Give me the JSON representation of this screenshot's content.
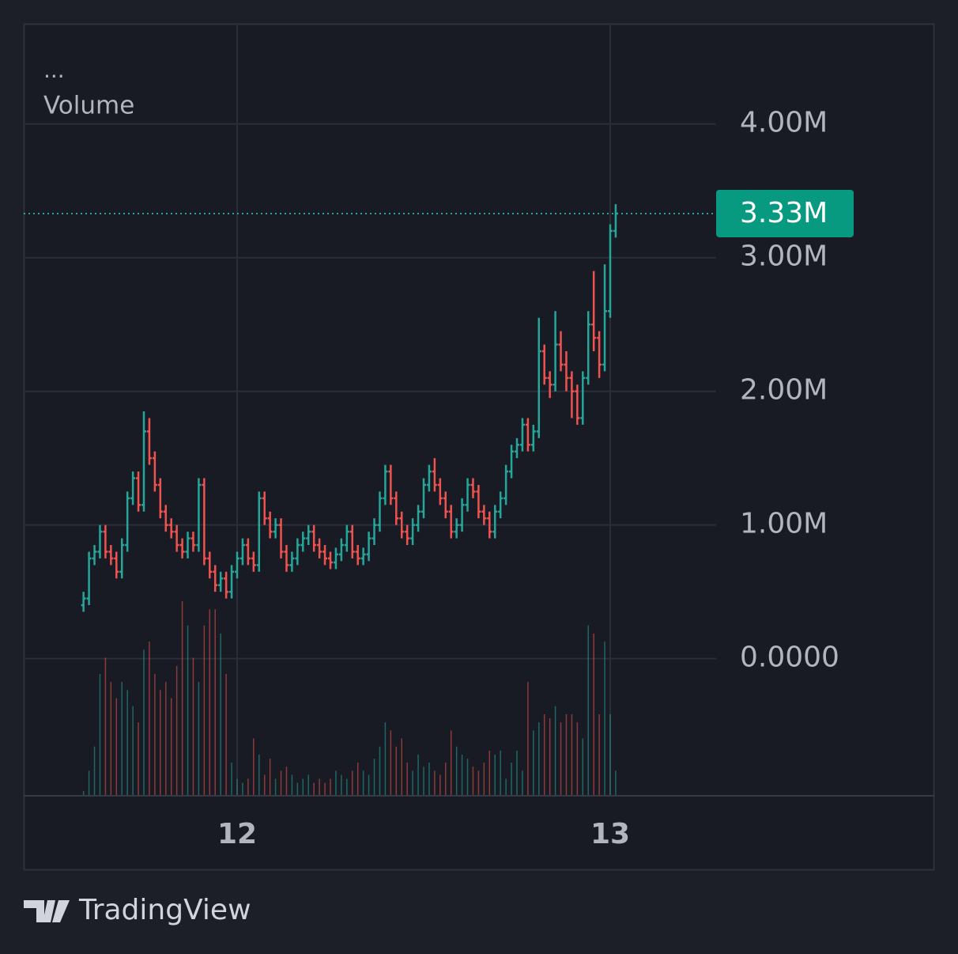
{
  "chart_data": {
    "type": "ohlc",
    "indicator_menu": "...",
    "indicator_label": "Volume",
    "brand": "TradingView",
    "categories": [
      null,
      null,
      null,
      null,
      null,
      null,
      null,
      null,
      null,
      null,
      null,
      null,
      null,
      null,
      null,
      null,
      null,
      null,
      null,
      null,
      null,
      null,
      null,
      null,
      null,
      null,
      null,
      null,
      "12",
      null,
      null,
      null,
      null,
      null,
      null,
      null,
      null,
      null,
      null,
      null,
      null,
      null,
      null,
      null,
      null,
      null,
      null,
      null,
      null,
      null,
      null,
      null,
      null,
      null,
      null,
      null,
      null,
      null,
      null,
      null,
      null,
      null,
      null,
      null,
      null,
      null,
      null,
      null,
      null,
      null,
      null,
      null,
      null,
      null,
      null,
      null,
      null,
      null,
      null,
      null,
      null,
      null,
      null,
      null,
      null,
      null,
      null,
      null,
      null,
      null,
      null,
      null,
      null,
      null,
      null,
      null,
      "13",
      null
    ],
    "open": [
      400000,
      450000,
      750000,
      800000,
      950000,
      800000,
      750000,
      650000,
      850000,
      1200000,
      1350000,
      1150000,
      1700000,
      1500000,
      1300000,
      1100000,
      1000000,
      950000,
      850000,
      800000,
      900000,
      850000,
      1300000,
      750000,
      650000,
      550000,
      600000,
      500000,
      650000,
      750000,
      850000,
      750000,
      700000,
      1200000,
      1050000,
      950000,
      1000000,
      800000,
      700000,
      750000,
      850000,
      900000,
      950000,
      850000,
      800000,
      750000,
      720000,
      780000,
      850000,
      950000,
      800000,
      750000,
      780000,
      900000,
      1000000,
      1200000,
      1400000,
      1200000,
      1050000,
      950000,
      900000,
      1000000,
      1100000,
      1300000,
      1400000,
      1300000,
      1200000,
      1100000,
      950000,
      1000000,
      1150000,
      1300000,
      1250000,
      1100000,
      1050000,
      950000,
      1100000,
      1200000,
      1400000,
      1550000,
      1600000,
      1750000,
      1600000,
      1700000,
      2300000,
      2100000,
      2050000,
      2350000,
      2200000,
      2100000,
      2000000,
      1800000,
      2100000,
      2500000,
      2400000,
      2200000,
      2600000,
      3200000
    ],
    "high": [
      500000,
      800000,
      850000,
      1000000,
      1000000,
      850000,
      800000,
      900000,
      1250000,
      1400000,
      1400000,
      1850000,
      1800000,
      1550000,
      1350000,
      1150000,
      1050000,
      1000000,
      900000,
      950000,
      950000,
      1350000,
      1350000,
      800000,
      700000,
      650000,
      650000,
      700000,
      800000,
      900000,
      900000,
      800000,
      1250000,
      1250000,
      1100000,
      1050000,
      1050000,
      850000,
      800000,
      900000,
      950000,
      1000000,
      1000000,
      900000,
      850000,
      800000,
      830000,
      900000,
      1000000,
      1000000,
      850000,
      830000,
      950000,
      1050000,
      1250000,
      1450000,
      1450000,
      1250000,
      1100000,
      1000000,
      1050000,
      1150000,
      1350000,
      1450000,
      1500000,
      1350000,
      1250000,
      1150000,
      1050000,
      1200000,
      1350000,
      1350000,
      1300000,
      1150000,
      1100000,
      1150000,
      1250000,
      1450000,
      1600000,
      1650000,
      1800000,
      1800000,
      1750000,
      2550000,
      2350000,
      2150000,
      2600000,
      2450000,
      2300000,
      2150000,
      2050000,
      2150000,
      2600000,
      2900000,
      2450000,
      2950000,
      3250000,
      3400000
    ],
    "low": [
      350000,
      400000,
      700000,
      750000,
      750000,
      700000,
      600000,
      600000,
      800000,
      1150000,
      1100000,
      1100000,
      1450000,
      1250000,
      1050000,
      950000,
      900000,
      800000,
      750000,
      750000,
      800000,
      800000,
      700000,
      600000,
      500000,
      500000,
      450000,
      450000,
      600000,
      700000,
      700000,
      650000,
      650000,
      1000000,
      900000,
      900000,
      750000,
      650000,
      650000,
      700000,
      800000,
      850000,
      800000,
      750000,
      700000,
      670000,
      670000,
      730000,
      800000,
      750000,
      700000,
      700000,
      730000,
      850000,
      950000,
      1150000,
      1150000,
      1000000,
      900000,
      850000,
      850000,
      950000,
      1050000,
      1250000,
      1250000,
      1150000,
      1050000,
      900000,
      900000,
      950000,
      1100000,
      1200000,
      1050000,
      1000000,
      900000,
      900000,
      1050000,
      1150000,
      1350000,
      1500000,
      1550000,
      1550000,
      1550000,
      1650000,
      2050000,
      1950000,
      2000000,
      2150000,
      2000000,
      1800000,
      1750000,
      1750000,
      2050000,
      2300000,
      2100000,
      2150000,
      2550000,
      3150000
    ],
    "close": [
      450000,
      750000,
      800000,
      950000,
      800000,
      750000,
      650000,
      850000,
      1200000,
      1350000,
      1150000,
      1700000,
      1500000,
      1300000,
      1100000,
      1000000,
      950000,
      850000,
      800000,
      900000,
      850000,
      1300000,
      750000,
      650000,
      550000,
      600000,
      500000,
      650000,
      750000,
      850000,
      750000,
      700000,
      1200000,
      1050000,
      950000,
      1000000,
      800000,
      700000,
      750000,
      850000,
      900000,
      950000,
      850000,
      800000,
      750000,
      720000,
      780000,
      850000,
      950000,
      800000,
      750000,
      780000,
      900000,
      1000000,
      1200000,
      1400000,
      1200000,
      1050000,
      950000,
      900000,
      1000000,
      1100000,
      1300000,
      1400000,
      1300000,
      1200000,
      1100000,
      950000,
      1000000,
      1150000,
      1300000,
      1250000,
      1100000,
      1050000,
      950000,
      1100000,
      1200000,
      1400000,
      1550000,
      1600000,
      1750000,
      1600000,
      1700000,
      2300000,
      2100000,
      2050000,
      2350000,
      2200000,
      2100000,
      2000000,
      1800000,
      2100000,
      2500000,
      2400000,
      2200000,
      2600000,
      3200000,
      3330000
    ],
    "volume": [
      5,
      30,
      60,
      150,
      170,
      140,
      120,
      140,
      130,
      110,
      90,
      180,
      190,
      150,
      130,
      140,
      120,
      160,
      240,
      210,
      170,
      140,
      210,
      230,
      230,
      200,
      150,
      40,
      20,
      15,
      20,
      70,
      50,
      25,
      45,
      20,
      30,
      35,
      25,
      15,
      20,
      25,
      15,
      20,
      15,
      20,
      30,
      25,
      20,
      30,
      40,
      30,
      25,
      45,
      60,
      90,
      80,
      60,
      70,
      40,
      30,
      50,
      35,
      40,
      30,
      25,
      40,
      80,
      60,
      50,
      45,
      35,
      30,
      40,
      55,
      50,
      55,
      20,
      40,
      55,
      30,
      140,
      80,
      90,
      100,
      95,
      110,
      90,
      100,
      100,
      90,
      70,
      210,
      200,
      100,
      190,
      100,
      30
    ],
    "last_price_label": "3.33M",
    "up_color": "#26a69a",
    "down_color": "#ef5350",
    "ylim": [
      -1020000,
      4750000
    ],
    "yticks": [
      {
        "value": 0,
        "label": "0.0000"
      },
      {
        "value": 1000000,
        "label": "1.00M"
      },
      {
        "value": 2000000,
        "label": "2.00M"
      },
      {
        "value": 3000000,
        "label": "3.00M"
      },
      {
        "value": 4000000,
        "label": "4.00M"
      }
    ],
    "grid": true
  }
}
